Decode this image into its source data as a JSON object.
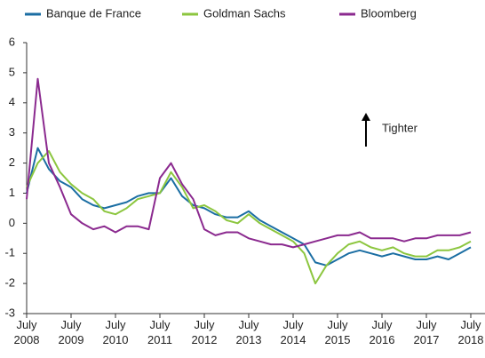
{
  "chart_data": {
    "type": "line",
    "categories": [
      "July 2008",
      null,
      null,
      null,
      "July 2009",
      null,
      null,
      null,
      "July 2010",
      null,
      null,
      null,
      "July 2011",
      null,
      null,
      null,
      "July 2012",
      null,
      null,
      null,
      "July 2013",
      null,
      null,
      null,
      "July 2014",
      null,
      null,
      null,
      "July 2015",
      null,
      null,
      null,
      "July 2016",
      null,
      null,
      null,
      "July 2017",
      null,
      null,
      null,
      "July 2018"
    ],
    "series": [
      {
        "name": "Banque de France",
        "color": "#1b6ea3",
        "values": [
          1.0,
          2.5,
          1.8,
          1.4,
          1.2,
          0.8,
          0.6,
          0.5,
          0.6,
          0.7,
          0.9,
          1.0,
          1.0,
          1.5,
          0.9,
          0.6,
          0.5,
          0.3,
          0.2,
          0.2,
          0.4,
          0.1,
          -0.1,
          -0.3,
          -0.5,
          -0.7,
          -1.3,
          -1.4,
          -1.2,
          -1.0,
          -0.9,
          -1.0,
          -1.1,
          -1.0,
          -1.1,
          -1.2,
          -1.2,
          -1.1,
          -1.2,
          -1.0,
          -0.8
        ]
      },
      {
        "name": "Goldman Sachs",
        "color": "#8cc63f",
        "values": [
          1.2,
          2.0,
          2.4,
          1.7,
          1.3,
          1.0,
          0.8,
          0.4,
          0.3,
          0.5,
          0.8,
          0.9,
          1.0,
          1.7,
          1.2,
          0.5,
          0.6,
          0.4,
          0.1,
          0.0,
          0.3,
          0.0,
          -0.2,
          -0.4,
          -0.6,
          -1.0,
          -2.0,
          -1.4,
          -1.0,
          -0.7,
          -0.6,
          -0.8,
          -0.9,
          -0.8,
          -1.0,
          -1.1,
          -1.1,
          -0.9,
          -0.9,
          -0.8,
          -0.6
        ]
      },
      {
        "name": "Bloomberg",
        "color": "#8b2a8f",
        "values": [
          0.8,
          4.8,
          2.0,
          1.2,
          0.3,
          0.0,
          -0.2,
          -0.1,
          -0.3,
          -0.1,
          -0.1,
          -0.2,
          1.5,
          2.0,
          1.3,
          0.8,
          -0.2,
          -0.4,
          -0.3,
          -0.3,
          -0.5,
          -0.6,
          -0.7,
          -0.7,
          -0.8,
          -0.7,
          -0.6,
          -0.5,
          -0.4,
          -0.4,
          -0.3,
          -0.5,
          -0.5,
          -0.5,
          -0.6,
          -0.5,
          -0.5,
          -0.4,
          -0.4,
          -0.4,
          -0.3
        ]
      }
    ],
    "ylim": [
      -3,
      6
    ],
    "yticks": [
      -3,
      -2,
      -1,
      0,
      1,
      2,
      3,
      4,
      5,
      6
    ],
    "annotation": "Tighter",
    "grid": false
  }
}
